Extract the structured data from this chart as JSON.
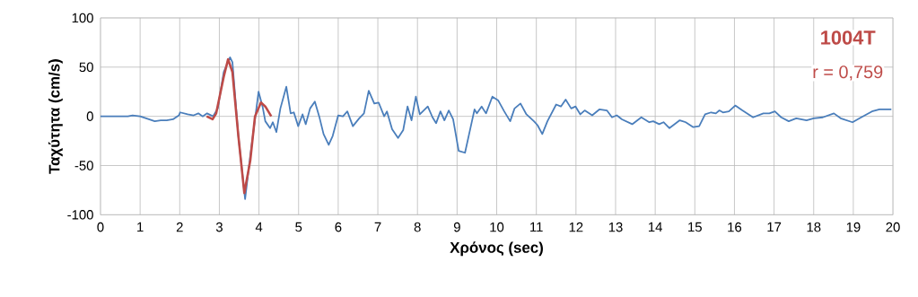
{
  "chart_data": {
    "type": "line",
    "xlabel": "Χρόνος (sec)",
    "ylabel": "Ταχύτητα (cm/s)",
    "annotations": [
      "1004T",
      "r = 0,759"
    ],
    "xlim": [
      0,
      20
    ],
    "ylim": [
      -100,
      100
    ],
    "xticks": [
      0,
      1,
      2,
      3,
      4,
      5,
      6,
      7,
      8,
      9,
      10,
      11,
      12,
      13,
      14,
      15,
      16,
      17,
      18,
      19,
      20
    ],
    "yticks": [
      -100,
      -50,
      0,
      50,
      100
    ],
    "grid": true,
    "marker": "none",
    "line_style": "solid",
    "series": [
      {
        "color": "#4a7ebb",
        "x": [
          0,
          0.69,
          0.81,
          1.0,
          1.22,
          1.37,
          1.52,
          1.67,
          1.83,
          1.98,
          2.01,
          2.2,
          2.35,
          2.47,
          2.58,
          2.69,
          2.84,
          2.96,
          3.11,
          3.27,
          3.33,
          3.48,
          3.65,
          3.78,
          3.99,
          4.09,
          4.16,
          4.28,
          4.35,
          4.44,
          4.54,
          4.69,
          4.8,
          4.88,
          4.99,
          5.1,
          5.18,
          5.29,
          5.41,
          5.52,
          5.63,
          5.76,
          5.86,
          6.0,
          6.12,
          6.23,
          6.37,
          6.53,
          6.65,
          6.77,
          6.91,
          7.02,
          7.16,
          7.23,
          7.36,
          7.51,
          7.64,
          7.75,
          7.85,
          7.96,
          8.06,
          8.26,
          8.38,
          8.47,
          8.58,
          8.68,
          8.79,
          8.9,
          9.04,
          9.2,
          9.32,
          9.44,
          9.5,
          9.62,
          9.73,
          9.89,
          10.04,
          10.19,
          10.34,
          10.45,
          10.6,
          10.75,
          10.94,
          11.03,
          11.15,
          11.28,
          11.5,
          11.62,
          11.74,
          11.88,
          11.99,
          12.11,
          12.22,
          12.41,
          12.59,
          12.78,
          12.91,
          13.03,
          13.16,
          13.42,
          13.65,
          13.85,
          13.95,
          14.1,
          14.21,
          14.36,
          14.62,
          14.77,
          14.96,
          15.11,
          15.26,
          15.41,
          15.53,
          15.62,
          15.71,
          15.86,
          16.02,
          16.2,
          16.47,
          16.73,
          16.88,
          17.02,
          17.18,
          17.37,
          17.56,
          17.82,
          18.0,
          18.23,
          18.51,
          18.68,
          18.98,
          19.2,
          19.47,
          19.66,
          19.96
        ],
        "values": [
          0,
          0,
          1,
          0,
          -3,
          -5,
          -4,
          -4,
          -3,
          1,
          4,
          2,
          1,
          3,
          0,
          3,
          0,
          8,
          45,
          60,
          55,
          -20,
          -84,
          -40,
          25,
          10,
          -5,
          -12,
          -6,
          -16,
          8,
          30,
          3,
          4,
          -10,
          2,
          -8,
          8,
          15,
          0,
          -18,
          -29,
          -20,
          1,
          0,
          5,
          -10,
          -2,
          3,
          26,
          13,
          14,
          0,
          5,
          -13,
          -22,
          -14,
          10,
          -4,
          20,
          2,
          10,
          -1,
          -7,
          5,
          -4,
          6,
          -3,
          -35,
          -37,
          -15,
          7,
          3,
          10,
          3,
          20,
          16,
          5,
          -5,
          8,
          13,
          2,
          -5,
          -9,
          -18,
          -5,
          12,
          10,
          17,
          8,
          10,
          2,
          6,
          1,
          7,
          6,
          -1,
          1,
          -3,
          -8,
          -1,
          -6,
          -5,
          -8,
          -6,
          -12,
          -4,
          -6,
          -11,
          -10,
          2,
          4,
          3,
          6,
          4,
          5,
          11,
          6,
          -1,
          3,
          3,
          5,
          -1,
          -5,
          -2,
          -4,
          -2,
          -1,
          3,
          -2,
          -6,
          -1,
          5,
          7,
          7
        ]
      },
      {
        "color": "#be4b48",
        "x": [
          2.68,
          2.83,
          2.92,
          3.11,
          3.22,
          3.33,
          3.48,
          3.63,
          3.78,
          3.9,
          4.05,
          4.16,
          4.31
        ],
        "values": [
          0,
          -3,
          3,
          40,
          58,
          45,
          -20,
          -78,
          -45,
          0,
          14,
          10,
          0
        ]
      }
    ]
  }
}
